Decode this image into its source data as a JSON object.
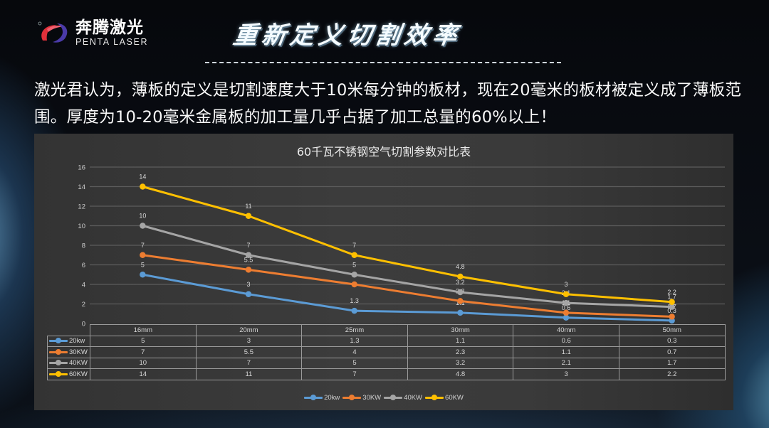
{
  "brand": {
    "name_cn": "奔腾激光",
    "name_en": "PENTA LASER"
  },
  "header": {
    "title": "重新定义切割效率"
  },
  "intro": {
    "text": "激光君认为，薄板的定义是切割速度大于10米每分钟的板材，现在20毫米的板材被定义成了薄板范围。厚度为10-20毫米金属板的加工量几乎占据了加工总量的60%以上！"
  },
  "chart": {
    "title": "60千瓦不锈钢空气切割参数对比表"
  },
  "chart_data": {
    "type": "line",
    "title": "60千瓦不锈钢空气切割参数对比表",
    "xlabel": "",
    "ylabel": "",
    "categories": [
      "16mm",
      "20mm",
      "25mm",
      "30mm",
      "40mm",
      "50mm"
    ],
    "yticks": [
      0,
      2,
      4,
      6,
      8,
      10,
      12,
      14,
      16
    ],
    "ylim": [
      0,
      16
    ],
    "grid": true,
    "legend_position": "bottom",
    "data_table": true,
    "series": [
      {
        "name": "20kw",
        "color": "#5b9bd5",
        "values": [
          5,
          3,
          1.3,
          1.1,
          0.6,
          0.3
        ]
      },
      {
        "name": "30KW",
        "color": "#ed7d31",
        "values": [
          7,
          5.5,
          4,
          2.3,
          1.1,
          0.7
        ]
      },
      {
        "name": "40KW",
        "color": "#a5a5a5",
        "values": [
          10,
          7,
          5,
          3.2,
          2.1,
          1.7
        ]
      },
      {
        "name": "60KW",
        "color": "#ffc000",
        "values": [
          14,
          11,
          7,
          4.8,
          3,
          2.2
        ]
      }
    ]
  }
}
